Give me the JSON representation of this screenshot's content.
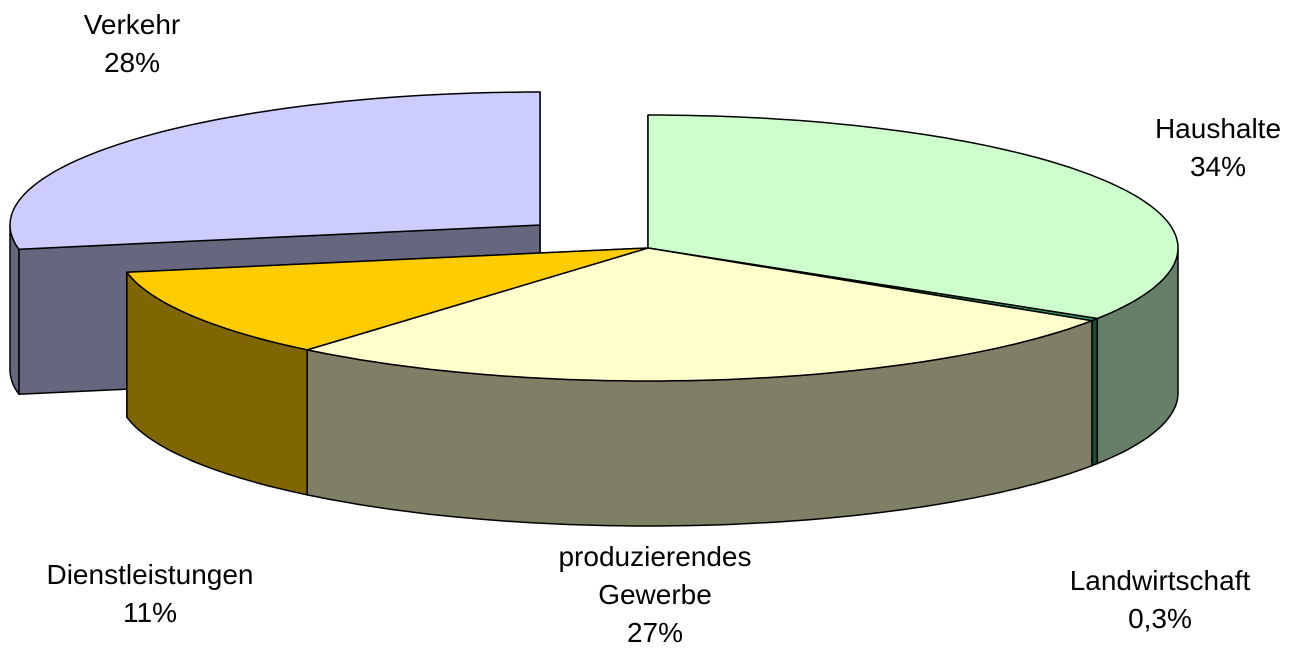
{
  "chart_data": {
    "type": "pie3d",
    "categories": [
      "Haushalte",
      "Landwirtschaft",
      "produzierendes Gewerbe",
      "Dienstleistungen",
      "Verkehr"
    ],
    "values": [
      34,
      0.3,
      27,
      11,
      28
    ],
    "value_labels": [
      "34%",
      "0,3%",
      "27%",
      "11%",
      "28%"
    ],
    "colors": [
      "#ccffcc",
      "#339966",
      "#ffffcc",
      "#ffcc00",
      "#ccccff"
    ]
  }
}
